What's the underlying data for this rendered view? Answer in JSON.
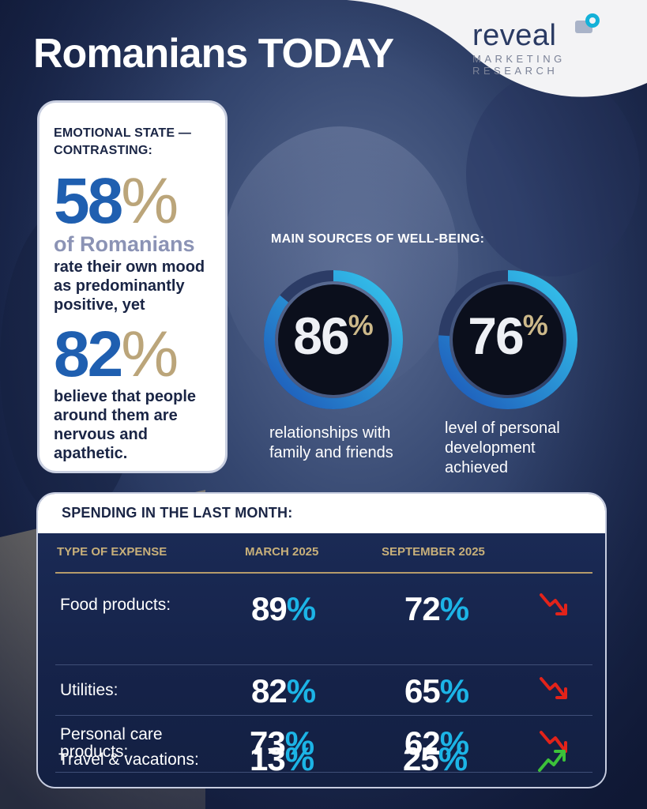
{
  "title": "Romanians TODAY",
  "logo": {
    "word": "reveal",
    "line1": "MARKETING",
    "line2": "RESEARCH"
  },
  "emotional": {
    "heading": "EMOTIONAL STATE — CONTRASTING:",
    "stat1": {
      "value": "58",
      "unit": "%",
      "who": "of Romanians",
      "text": "rate their own mood as predominantly positive, yet"
    },
    "stat2": {
      "value": "82",
      "unit": "%",
      "text": "believe that people around them are nervous and apathetic."
    }
  },
  "wellbeing": {
    "heading": "MAIN SOURCES OF WELL-BEING:",
    "items": [
      {
        "value": "86",
        "unit": "%",
        "percent": 86,
        "caption": "relationships with family and friends"
      },
      {
        "value": "76",
        "unit": "%",
        "percent": 76,
        "caption": "level of personal development achieved"
      }
    ]
  },
  "spending": {
    "title": "SPENDING IN THE LAST MONTH:",
    "headers": [
      "TYPE OF EXPENSE",
      "MARCH 2025",
      "SEPTEMBER 2025"
    ],
    "rows": [
      {
        "label": "Food products:",
        "march": "89",
        "september": "72",
        "unit": "%",
        "trend": "down"
      },
      {
        "label": "Utilities:",
        "march": "82",
        "september": "65",
        "unit": "%",
        "trend": "down"
      },
      {
        "label": "Personal care products:",
        "march": "73",
        "september": "62",
        "unit": "%",
        "trend": "down"
      },
      {
        "label": "Travel & vacations:",
        "march": "13",
        "september": "25",
        "unit": "%",
        "trend": "up"
      }
    ]
  },
  "colors": {
    "accent_blue": "#1f5fb0",
    "gold": "#bba57a",
    "cyan": "#1cb4e6",
    "down": "#e2231a",
    "up": "#3cc23a"
  }
}
